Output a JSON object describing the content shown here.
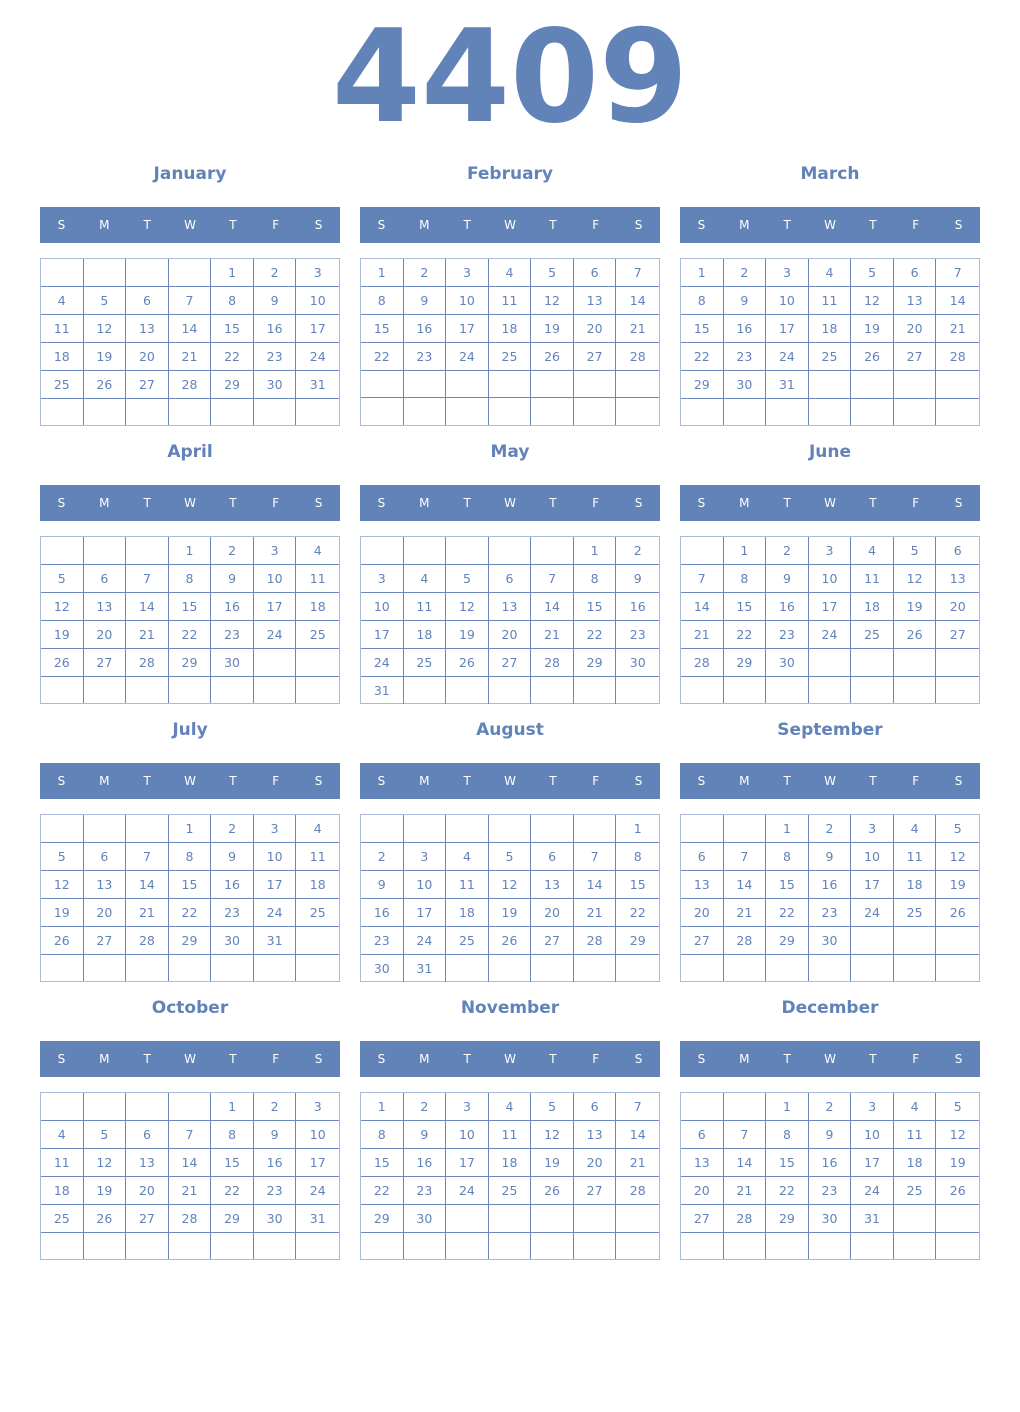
{
  "year": "4409",
  "weekday_headers": [
    "S",
    "M",
    "T",
    "W",
    "T",
    "F",
    "S"
  ],
  "colors": {
    "accent": "#6283b8",
    "header_text": "#ffffff"
  },
  "months": [
    {
      "name": "January",
      "first_weekday": 4,
      "days": 31
    },
    {
      "name": "February",
      "first_weekday": 0,
      "days": 28
    },
    {
      "name": "March",
      "first_weekday": 0,
      "days": 31
    },
    {
      "name": "April",
      "first_weekday": 3,
      "days": 30
    },
    {
      "name": "May",
      "first_weekday": 5,
      "days": 31
    },
    {
      "name": "June",
      "first_weekday": 1,
      "days": 30
    },
    {
      "name": "July",
      "first_weekday": 3,
      "days": 31
    },
    {
      "name": "August",
      "first_weekday": 6,
      "days": 31
    },
    {
      "name": "September",
      "first_weekday": 2,
      "days": 30
    },
    {
      "name": "October",
      "first_weekday": 4,
      "days": 31
    },
    {
      "name": "November",
      "first_weekday": 0,
      "days": 30
    },
    {
      "name": "December",
      "first_weekday": 2,
      "days": 31
    }
  ]
}
